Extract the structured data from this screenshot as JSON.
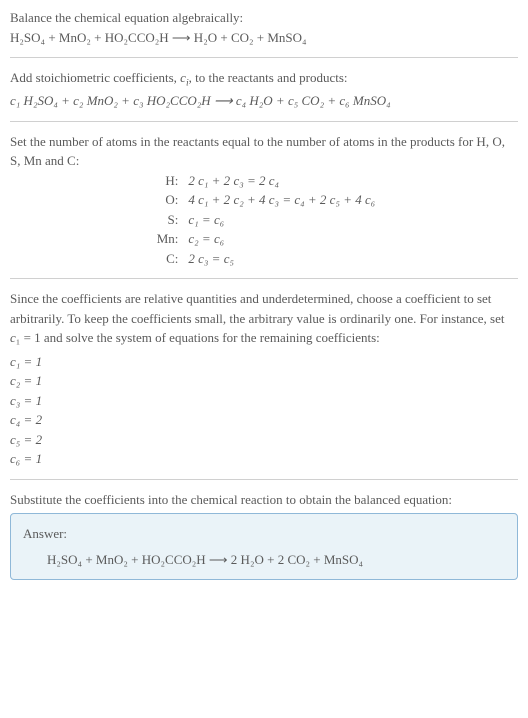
{
  "intro": {
    "line1": "Balance the chemical equation algebraically:",
    "equation": "H₂SO₄ + MnO₂ + HO₂CCO₂H ⟶ H₂O + CO₂ + MnSO₄"
  },
  "stoich": {
    "text": "Add stoichiometric coefficients, cᵢ, to the reactants and products:",
    "equation": "c₁ H₂SO₄ + c₂ MnO₂ + c₃ HO₂CCO₂H ⟶ c₄ H₂O + c₅ CO₂ + c₆ MnSO₄"
  },
  "atoms": {
    "text": "Set the number of atoms in the reactants equal to the number of atoms in the products for H, O, S, Mn and C:",
    "rows": [
      {
        "elem": "H:",
        "eq": "2 c₁ + 2 c₃ = 2 c₄"
      },
      {
        "elem": "O:",
        "eq": "4 c₁ + 2 c₂ + 4 c₃ = c₄ + 2 c₅ + 4 c₆"
      },
      {
        "elem": "S:",
        "eq": "c₁ = c₆"
      },
      {
        "elem": "Mn:",
        "eq": "c₂ = c₆"
      },
      {
        "elem": "C:",
        "eq": "2 c₃ = c₅"
      }
    ]
  },
  "underdet": {
    "text": "Since the coefficients are relative quantities and underdetermined, choose a coefficient to set arbitrarily. To keep the coefficients small, the arbitrary value is ordinarily one. For instance, set c₁ = 1 and solve the system of equations for the remaining coefficients:",
    "coeffs": [
      "c₁ = 1",
      "c₂ = 1",
      "c₃ = 1",
      "c₄ = 2",
      "c₅ = 2",
      "c₆ = 1"
    ]
  },
  "substitute": {
    "text": "Substitute the coefficients into the chemical reaction to obtain the balanced equation:"
  },
  "answer": {
    "label": "Answer:",
    "equation": "H₂SO₄ + MnO₂ + HO₂CCO₂H ⟶ 2 H₂O + 2 CO₂ + MnSO₄"
  },
  "colors": {
    "text": "#5a5a5a",
    "divider": "#d0d0d0",
    "answer_border": "#8fb8d8",
    "answer_bg": "#eaf3f8",
    "background": "#ffffff"
  }
}
